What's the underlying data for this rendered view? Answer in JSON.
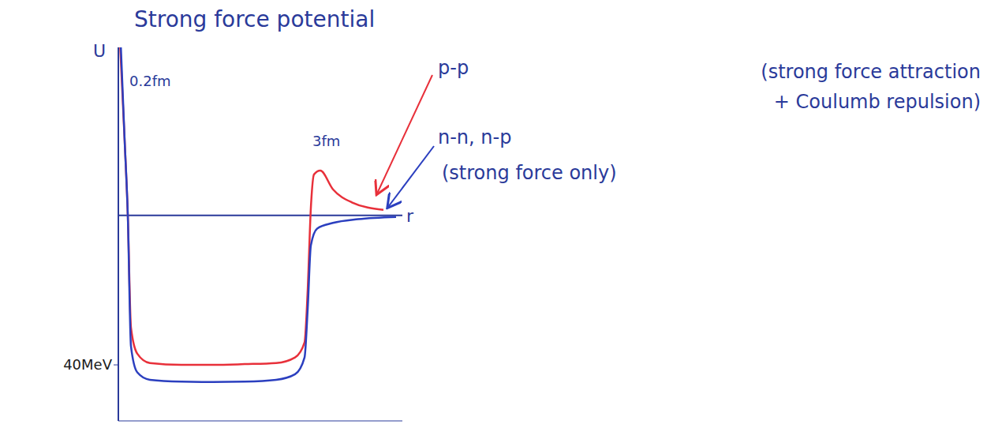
{
  "chart_data": {
    "type": "line",
    "title": "Strong force potential",
    "x_label": "r",
    "y_label": "U",
    "xlim": [
      0,
      4.5
    ],
    "ylim": [
      -55,
      45
    ],
    "yticks": [
      {
        "value": -40,
        "label": "40MeV"
      }
    ],
    "grid": false,
    "tick_labels": "y",
    "series": [
      {
        "name": "p-p",
        "description": [
          "(strong force attraction",
          "+ Coulumb repulsion)"
        ],
        "color": "#e8303a",
        "x": [
          0.03,
          0.1,
          0.15,
          0.2,
          0.3,
          0.5,
          1.0,
          1.5,
          2.0,
          2.5,
          2.8,
          2.95,
          3.0,
          3.05,
          3.1,
          3.2,
          3.4,
          3.7,
          4.2
        ],
        "values": [
          45,
          20,
          0,
          -30,
          -37,
          -39.5,
          -40,
          -40,
          -39.8,
          -39.5,
          -38,
          -34,
          -20,
          2,
          11,
          12,
          7,
          3.5,
          1.5
        ]
      },
      {
        "name": "n-n, n-p",
        "description": [
          "(strong force only)"
        ],
        "color": "#2b3fbf",
        "x": [
          0.04,
          0.1,
          0.15,
          0.2,
          0.3,
          0.5,
          1.0,
          1.5,
          2.0,
          2.5,
          2.8,
          2.95,
          3.0,
          3.05,
          3.15,
          3.4,
          3.8,
          4.4
        ],
        "values": [
          45,
          20,
          0,
          -35,
          -42,
          -44,
          -44.5,
          -44.6,
          -44.5,
          -44,
          -42.5,
          -38,
          -25,
          -8,
          -3.5,
          -2,
          -1,
          -0.4
        ]
      }
    ],
    "annotations": [
      {
        "text": "0.2fm",
        "x": 0.1,
        "y": 36
      },
      {
        "text": "3fm",
        "x": 3.0,
        "y": 20
      }
    ]
  }
}
